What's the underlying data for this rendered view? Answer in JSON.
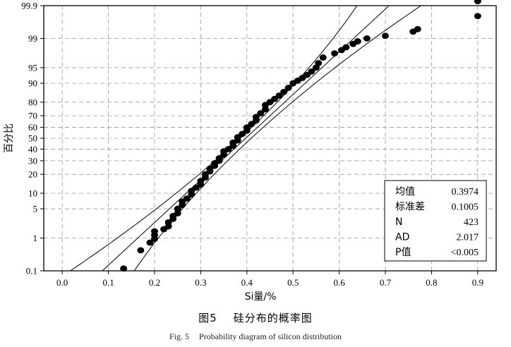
{
  "chart_data": {
    "type": "scatter",
    "ylabel": "百分比",
    "xlabel": "Si量/%",
    "xlim": [
      -0.04,
      0.94
    ],
    "x_ticks": [
      "0.0",
      "0.1",
      "0.2",
      "0.3",
      "0.4",
      "0.5",
      "0.6",
      "0.7",
      "0.8",
      "0.9"
    ],
    "y_ticks": [
      "0.1",
      "1",
      "5",
      "10",
      "20",
      "30",
      "40",
      "50",
      "60",
      "70",
      "80",
      "90",
      "95",
      "99",
      "99.9"
    ],
    "y_tick_values": [
      0.1,
      1,
      5,
      10,
      20,
      30,
      40,
      50,
      60,
      70,
      80,
      90,
      95,
      99,
      99.9
    ],
    "grid": true,
    "scale": "normal-probability",
    "stats": {
      "rows": [
        {
          "label": "均值",
          "value": "0.3974"
        },
        {
          "label": "标准差",
          "value": "0.1005"
        },
        {
          "label": "N",
          "value": "423"
        },
        {
          "label": "AD",
          "value": "2.017"
        },
        {
          "label": "P值",
          "value": "<0.005"
        }
      ]
    },
    "points": [
      [
        0.133,
        0.12
      ],
      [
        0.17,
        0.45
      ],
      [
        0.19,
        0.75
      ],
      [
        0.2,
        0.95
      ],
      [
        0.2,
        1.2
      ],
      [
        0.2,
        1.5
      ],
      [
        0.22,
        1.7
      ],
      [
        0.23,
        2.0
      ],
      [
        0.23,
        2.5
      ],
      [
        0.24,
        3.0
      ],
      [
        0.24,
        3.5
      ],
      [
        0.25,
        4.0
      ],
      [
        0.25,
        5.0
      ],
      [
        0.26,
        6.0
      ],
      [
        0.26,
        7.0
      ],
      [
        0.27,
        8.0
      ],
      [
        0.28,
        9.5
      ],
      [
        0.28,
        11
      ],
      [
        0.29,
        12.5
      ],
      [
        0.3,
        14
      ],
      [
        0.3,
        16
      ],
      [
        0.31,
        18
      ],
      [
        0.31,
        20
      ],
      [
        0.32,
        22
      ],
      [
        0.32,
        24
      ],
      [
        0.33,
        26
      ],
      [
        0.33,
        28
      ],
      [
        0.34,
        30
      ],
      [
        0.34,
        32
      ],
      [
        0.35,
        35
      ],
      [
        0.35,
        38
      ],
      [
        0.36,
        40
      ],
      [
        0.37,
        43
      ],
      [
        0.37,
        46
      ],
      [
        0.38,
        48
      ],
      [
        0.38,
        51
      ],
      [
        0.39,
        54
      ],
      [
        0.4,
        57
      ],
      [
        0.4,
        60
      ],
      [
        0.41,
        63
      ],
      [
        0.42,
        66
      ],
      [
        0.42,
        69
      ],
      [
        0.43,
        72
      ],
      [
        0.44,
        75
      ],
      [
        0.44,
        78
      ],
      [
        0.45,
        80
      ],
      [
        0.46,
        82
      ],
      [
        0.47,
        84
      ],
      [
        0.48,
        86
      ],
      [
        0.49,
        88
      ],
      [
        0.5,
        90
      ],
      [
        0.51,
        91
      ],
      [
        0.52,
        92
      ],
      [
        0.53,
        93
      ],
      [
        0.54,
        94
      ],
      [
        0.55,
        95
      ],
      [
        0.555,
        96
      ],
      [
        0.565,
        97
      ],
      [
        0.59,
        97.6
      ],
      [
        0.605,
        98.0
      ],
      [
        0.615,
        98.3
      ],
      [
        0.63,
        98.6
      ],
      [
        0.64,
        98.8
      ],
      [
        0.66,
        99.0
      ],
      [
        0.7,
        99.15
      ],
      [
        0.76,
        99.35
      ],
      [
        0.77,
        99.45
      ],
      [
        0.9,
        99.78
      ],
      [
        0.9,
        99.93
      ]
    ],
    "fit": {
      "mean": 0.3974,
      "sd": 0.1005
    }
  },
  "caption": {
    "cn_fig": "图5",
    "cn_title": "硅分布的概率图",
    "en_fig": "Fig. 5",
    "en_title": "Probability diagram of silicon distribution"
  }
}
